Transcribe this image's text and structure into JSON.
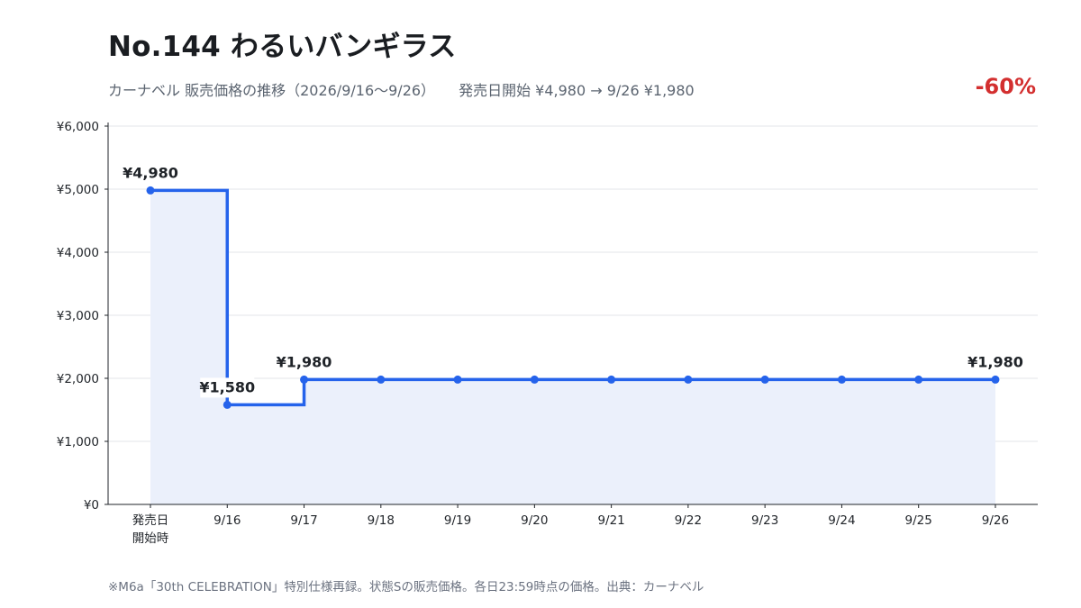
{
  "title": "No.144 わるいバンギラス",
  "subtitle_left": "カーナベル 販売価格の推移（2026/9/16〜9/26）",
  "subtitle_right": "発売日開始 ¥4,980 → 9/26 ¥1,980",
  "change_badge": "-60%",
  "footnote": "※M6a「30th CELEBRATION」特別仕様再録。状態Sの販売価格。各日23:59時点の価格。出典：カーナベル",
  "colors": {
    "line": "#2563eb",
    "fill": "#ebf0fb",
    "change": "#d32f2f"
  },
  "chart_data": {
    "type": "line",
    "step": true,
    "categories": [
      "発売日\n開始時",
      "9/16",
      "9/17",
      "9/18",
      "9/19",
      "9/20",
      "9/21",
      "9/22",
      "9/23",
      "9/24",
      "9/25",
      "9/26"
    ],
    "values": [
      4980,
      1580,
      1980,
      1980,
      1980,
      1980,
      1980,
      1980,
      1980,
      1980,
      1980,
      1980
    ],
    "ylim": [
      0,
      6000
    ],
    "yticks": [
      0,
      1000,
      2000,
      3000,
      4000,
      5000,
      6000
    ],
    "ytick_labels": [
      "¥0",
      "¥1,000",
      "¥2,000",
      "¥3,000",
      "¥4,000",
      "¥5,000",
      "¥6,000"
    ],
    "data_labels": [
      {
        "index": 0,
        "text": "¥4,980"
      },
      {
        "index": 1,
        "text": "¥1,580"
      },
      {
        "index": 2,
        "text": "¥1,980"
      },
      {
        "index": 11,
        "text": "¥1,980"
      }
    ],
    "grid": true,
    "area_fill": true
  }
}
